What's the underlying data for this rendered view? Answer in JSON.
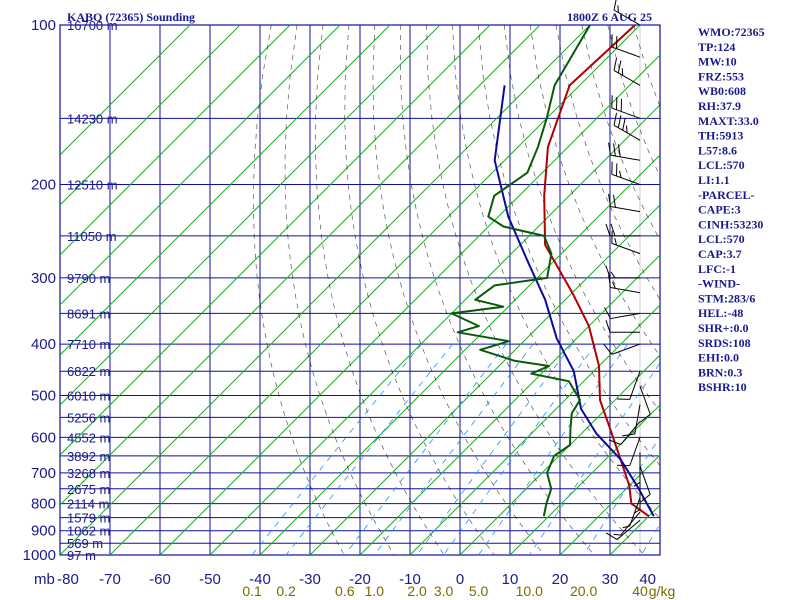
{
  "header": {
    "station": "KABQ (72365) Sounding",
    "time": "1800Z  6 AUG 25"
  },
  "indices": [
    "WMO:72365",
    "TP:124",
    "MW:10",
    "FRZ:553",
    "WB0:608",
    "RH:37.9",
    "MAXT:33.0",
    "TH:5913",
    "L57:8.6",
    "LCL:570",
    "LI:1.1",
    "-PARCEL-",
    "CAPE:3",
    "CINH:53230",
    "LCL:570",
    "CAP:3.7",
    "LFC:-1",
    "-WIND-",
    "STM:283/6",
    "HEL:-48",
    "SHR+:0.0",
    "SRDS:108",
    "EHI:0.0",
    "BRN:0.3",
    "BSHR:10"
  ],
  "chart_data": {
    "type": "line",
    "title": "KABQ (72365) Sounding",
    "subtitle": "1800Z  6 AUG 25",
    "xlabel": "",
    "ylabel": "mb",
    "y_scale": "log",
    "ylim": [
      1000,
      100
    ],
    "xlim": [
      -80,
      40
    ],
    "x_ticks": [
      "-80",
      "-70",
      "-60",
      "-50",
      "-40",
      "-30",
      "-20",
      "-10",
      "0",
      "10",
      "20",
      "30",
      "40"
    ],
    "pressure_ticks": [
      {
        "p": 100,
        "label": "100"
      },
      {
        "p": 200,
        "label": "200"
      },
      {
        "p": 300,
        "label": "300"
      },
      {
        "p": 400,
        "label": "400"
      },
      {
        "p": 500,
        "label": "500"
      },
      {
        "p": 600,
        "label": "600"
      },
      {
        "p": 700,
        "label": "700"
      },
      {
        "p": 800,
        "label": "800"
      },
      {
        "p": 900,
        "label": "900"
      },
      {
        "p": 1000,
        "label": "1000"
      }
    ],
    "height_labels": [
      {
        "p": 100,
        "label": "16700 m"
      },
      {
        "p": 150,
        "label": "14230 m"
      },
      {
        "p": 200,
        "label": "12510 m"
      },
      {
        "p": 250,
        "label": "11050 m"
      },
      {
        "p": 300,
        "label": "9790 m"
      },
      {
        "p": 350,
        "label": "8691 m"
      },
      {
        "p": 400,
        "label": "7710 m"
      },
      {
        "p": 450,
        "label": "6822 m"
      },
      {
        "p": 500,
        "label": "6010 m"
      },
      {
        "p": 550,
        "label": "5256 m"
      },
      {
        "p": 600,
        "label": "4552 m"
      },
      {
        "p": 650,
        "label": "3892 m"
      },
      {
        "p": 700,
        "label": "3268 m"
      },
      {
        "p": 750,
        "label": "2675 m"
      },
      {
        "p": 800,
        "label": "2114 m"
      },
      {
        "p": 850,
        "label": "1579 m"
      },
      {
        "p": 900,
        "label": "1062 m"
      },
      {
        "p": 950,
        "label": "569 m"
      },
      {
        "p": 1000,
        "label": "97 m"
      }
    ],
    "mixing_ratio_labels": [
      "0.1",
      "0.2",
      "0.6",
      "1.0",
      "2.0",
      "3.0",
      "5.0",
      "10.0",
      "20.0",
      "40",
      "g/kg"
    ],
    "mixing_ratio_values": [
      0.1,
      0.2,
      0.6,
      1.0,
      2.0,
      3.0,
      5.0,
      10.0,
      20.0,
      40
    ],
    "series": [
      {
        "role": "temperature",
        "color": "#b00000",
        "points": [
          [
            -71,
            100
          ],
          [
            -72,
            130
          ],
          [
            -64,
            170
          ],
          [
            -55,
            210
          ],
          [
            -45,
            260
          ],
          [
            -30,
            320
          ],
          [
            -20,
            370
          ],
          [
            -10,
            440
          ],
          [
            -3,
            510
          ],
          [
            5,
            580
          ],
          [
            13,
            660
          ],
          [
            20,
            740
          ],
          [
            24,
            800
          ],
          [
            30,
            845
          ]
        ]
      },
      {
        "role": "parcel",
        "color": "#0a0aa0",
        "points": [
          [
            -85,
            130
          ],
          [
            -72,
            180
          ],
          [
            -58,
            230
          ],
          [
            -45,
            280
          ],
          [
            -34,
            330
          ],
          [
            -24,
            390
          ],
          [
            -14,
            450
          ],
          [
            -5,
            530
          ],
          [
            3,
            590
          ],
          [
            13,
            660
          ],
          [
            22,
            745
          ],
          [
            31,
            845
          ]
        ]
      },
      {
        "role": "dewpoint",
        "color": "#0a5a0a",
        "points": [
          [
            -80,
            100
          ],
          [
            -75,
            130
          ],
          [
            -70,
            150
          ],
          [
            -66,
            170
          ],
          [
            -63,
            190
          ],
          [
            -65,
            210
          ],
          [
            -62,
            230
          ],
          [
            -57,
            240
          ],
          [
            -47,
            250
          ],
          [
            -42,
            270
          ],
          [
            -38,
            300
          ],
          [
            -47,
            310
          ],
          [
            -48,
            330
          ],
          [
            -41,
            340
          ],
          [
            -50,
            350
          ],
          [
            -42,
            370
          ],
          [
            -45,
            380
          ],
          [
            -33,
            395
          ],
          [
            -37,
            410
          ],
          [
            -28,
            430
          ],
          [
            -20,
            440
          ],
          [
            -22,
            455
          ],
          [
            -13,
            470
          ],
          [
            -7,
            510
          ],
          [
            -6,
            540
          ],
          [
            -3,
            580
          ],
          [
            0,
            620
          ],
          [
            -1,
            650
          ],
          [
            1,
            700
          ],
          [
            5,
            750
          ],
          [
            7,
            800
          ],
          [
            9,
            845
          ]
        ]
      }
    ],
    "wind_barbs": [
      {
        "p": 100,
        "dir": 300,
        "spd": 15
      },
      {
        "p": 115,
        "dir": 290,
        "spd": 20
      },
      {
        "p": 130,
        "dir": 300,
        "spd": 25
      },
      {
        "p": 150,
        "dir": 290,
        "spd": 30
      },
      {
        "p": 165,
        "dir": 300,
        "spd": 35
      },
      {
        "p": 180,
        "dir": 280,
        "spd": 30
      },
      {
        "p": 200,
        "dir": 290,
        "spd": 25
      },
      {
        "p": 225,
        "dir": 280,
        "spd": 20
      },
      {
        "p": 250,
        "dir": 270,
        "spd": 20
      },
      {
        "p": 270,
        "dir": 290,
        "spd": 15
      },
      {
        "p": 300,
        "dir": 270,
        "spd": 15
      },
      {
        "p": 320,
        "dir": 280,
        "spd": 15
      },
      {
        "p": 350,
        "dir": 260,
        "spd": 10
      },
      {
        "p": 380,
        "dir": 270,
        "spd": 10
      },
      {
        "p": 400,
        "dir": 250,
        "spd": 10
      },
      {
        "p": 450,
        "dir": 200,
        "spd": 10
      },
      {
        "p": 480,
        "dir": 160,
        "spd": 10
      },
      {
        "p": 520,
        "dir": 190,
        "spd": 10
      },
      {
        "p": 560,
        "dir": 220,
        "spd": 10
      },
      {
        "p": 600,
        "dir": 200,
        "spd": 10
      },
      {
        "p": 640,
        "dir": 180,
        "spd": 5
      },
      {
        "p": 680,
        "dir": 160,
        "spd": 10
      },
      {
        "p": 720,
        "dir": 180,
        "spd": 5
      },
      {
        "p": 780,
        "dir": 200,
        "spd": 5
      },
      {
        "p": 830,
        "dir": 220,
        "spd": 5
      },
      {
        "p": 860,
        "dir": 230,
        "spd": 10
      }
    ],
    "colors": {
      "grid": "#1010a0",
      "isotherm": "#22aa22",
      "dry_adiabat": "#111111",
      "mixing_ratio": "#1e90ff",
      "axis_text": "#1a1a8c",
      "mixing_text": "#7a6a00"
    }
  }
}
